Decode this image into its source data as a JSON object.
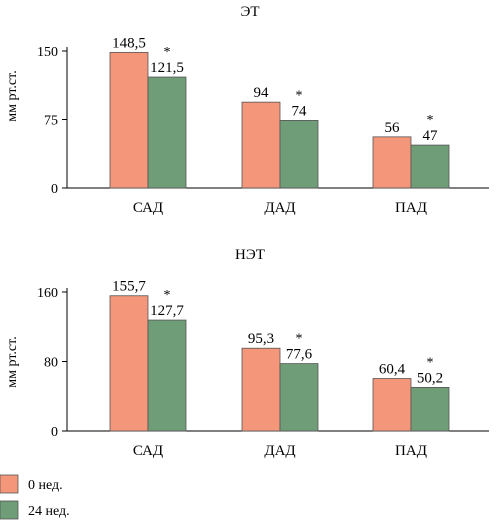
{
  "chart_data": [
    {
      "type": "bar",
      "title": "ЭТ",
      "ylabel": "мм рт.ст.",
      "ylim": [
        0,
        150
      ],
      "yticks": [
        "0",
        "75",
        "150"
      ],
      "categories": [
        "САД",
        "ДАД",
        "ПАД"
      ],
      "series": [
        {
          "name": "0 нед.",
          "values": [
            148.5,
            94,
            56
          ],
          "labels": [
            "148,5",
            "94",
            "56"
          ]
        },
        {
          "name": "24 нед.",
          "values": [
            121.5,
            74,
            47
          ],
          "labels": [
            "121,5",
            "74",
            "47"
          ],
          "marker": "*"
        }
      ]
    },
    {
      "type": "bar",
      "title": "НЭТ",
      "ylabel": "мм рт.ст.",
      "ylim": [
        0,
        160
      ],
      "yticks": [
        "0",
        "80",
        "160"
      ],
      "categories": [
        "САД",
        "ДАД",
        "ПАД"
      ],
      "series": [
        {
          "name": "0 нед.",
          "values": [
            155.7,
            95.3,
            60.4
          ],
          "labels": [
            "155,7",
            "95,3",
            "60,4"
          ]
        },
        {
          "name": "24 нед.",
          "values": [
            127.7,
            77.6,
            50.2
          ],
          "labels": [
            "127,7",
            "77,6",
            "50,2"
          ],
          "marker": "*"
        }
      ]
    }
  ],
  "legend": {
    "placement": "bottom-left",
    "items": [
      {
        "label": "0 нед.",
        "color": "#f4967a"
      },
      {
        "label": "24 нед.",
        "color": "#6e9d77"
      }
    ]
  },
  "colors": {
    "series0": "#f4967a",
    "series1": "#6e9d77",
    "stroke": "#555555"
  }
}
